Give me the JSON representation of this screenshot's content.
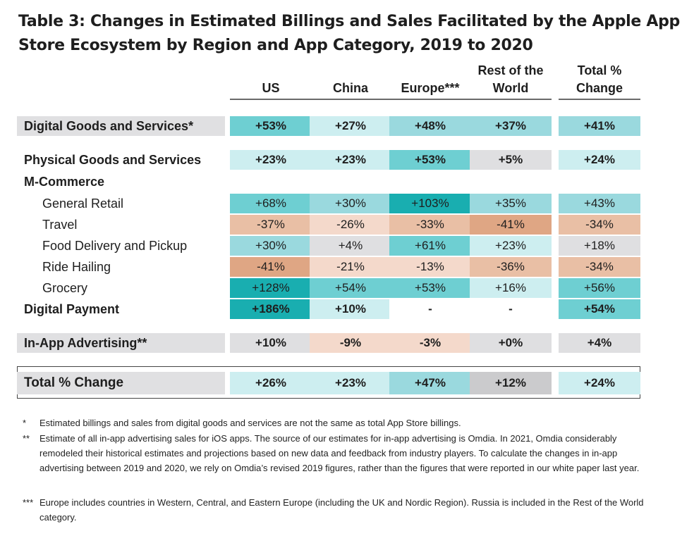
{
  "title": "Table 3: Changes in Estimated Billings and Sales Facilitated by the Apple App Store Ecosystem by Region and App Category, 2019 to 2020",
  "columns": [
    {
      "line1": "",
      "line2": "US"
    },
    {
      "line1": "",
      "line2": "China"
    },
    {
      "line1": "",
      "line2": "Europe***"
    },
    {
      "line1": "Rest of the",
      "line2": "World"
    },
    {
      "line1": "Total %",
      "line2": "Change"
    }
  ],
  "rows": [
    {
      "label": "Digital Goods and Services*",
      "values": [
        "+53%",
        "+27%",
        "+48%",
        "+37%",
        "+41%"
      ],
      "colors": [
        "#6ecfd2",
        "#cdeef0",
        "#9ad9de",
        "#9ad9de",
        "#9ad9de"
      ]
    },
    {
      "label": "Physical Goods and Services",
      "values": [
        "+23%",
        "+23%",
        "+53%",
        "+5%",
        "+24%"
      ],
      "colors": [
        "#cdeef0",
        "#cdeef0",
        "#6ecfd2",
        "#dfdfe1",
        "#cdeef0"
      ]
    },
    {
      "label": "M-Commerce",
      "values": [],
      "colors": []
    },
    {
      "label": "General Retail",
      "values": [
        "+68%",
        "+30%",
        "+103%",
        "+35%",
        "+43%"
      ],
      "colors": [
        "#6ecfd2",
        "#9ad9de",
        "#19aeb0",
        "#9ad9de",
        "#9ad9de"
      ]
    },
    {
      "label": "Travel",
      "values": [
        "-37%",
        "-26%",
        "-33%",
        "-41%",
        "-34%"
      ],
      "colors": [
        "#e9bfa5",
        "#f4d9cb",
        "#e9bfa5",
        "#dfa684",
        "#e9bfa5"
      ]
    },
    {
      "label": "Food Delivery and Pickup",
      "values": [
        "+30%",
        "+4%",
        "+61%",
        "+23%",
        "+18%"
      ],
      "colors": [
        "#9ad9de",
        "#dfdfe1",
        "#6ecfd2",
        "#cdeef0",
        "#dfdfe1"
      ]
    },
    {
      "label": "Ride Hailing",
      "values": [
        "-41%",
        "-21%",
        "-13%",
        "-36%",
        "-34%"
      ],
      "colors": [
        "#dfa684",
        "#f4d9cb",
        "#f4d9cb",
        "#e9bfa5",
        "#e9bfa5"
      ]
    },
    {
      "label": "Grocery",
      "values": [
        "+128%",
        "+54%",
        "+53%",
        "+16%",
        "+56%"
      ],
      "colors": [
        "#19aeb0",
        "#6ecfd2",
        "#6ecfd2",
        "#cdeef0",
        "#6ecfd2"
      ]
    },
    {
      "label": "Digital Payment",
      "values": [
        "+186%",
        "+10%",
        "-",
        "-",
        "+54%"
      ],
      "colors": [
        "#19aeb0",
        "#cdeef0",
        "#ffffff",
        "#ffffff",
        "#6ecfd2"
      ]
    },
    {
      "label": "In-App Advertising**",
      "values": [
        "+10%",
        "-9%",
        "-3%",
        "+0%",
        "+4%"
      ],
      "colors": [
        "#dfdfe1",
        "#f4d9cb",
        "#f4d9cb",
        "#dfdfe1",
        "#dfdfe1"
      ]
    },
    {
      "label": "Total % Change",
      "values": [
        "+26%",
        "+23%",
        "+47%",
        "+12%",
        "+24%"
      ],
      "colors": [
        "#cdeef0",
        "#cdeef0",
        "#9ad9de",
        "#cbcbcd",
        "#cdeef0"
      ]
    }
  ],
  "footnotes": [
    {
      "mark": "*",
      "text": "Estimated billings and sales from digital goods and services are not the same as total App Store billings."
    },
    {
      "mark": "**",
      "text": "Estimate of all in-app advertising sales for iOS apps. The source of our estimates for in-app advertising is Omdia. In 2021, Omdia considerably remodeled their historical estimates and projections based on new data and feedback from industry players. To calculate the changes in in-app advertising between 2019 and 2020, we rely on Omdia’s revised 2019 figures, rather than the figures that were reported in our white paper last year."
    },
    {
      "mark": "***",
      "text": "Europe includes countries in Western, Central, and Eastern Europe (including the UK and Nordic Region). Russia is included in the Rest of the World category."
    }
  ]
}
